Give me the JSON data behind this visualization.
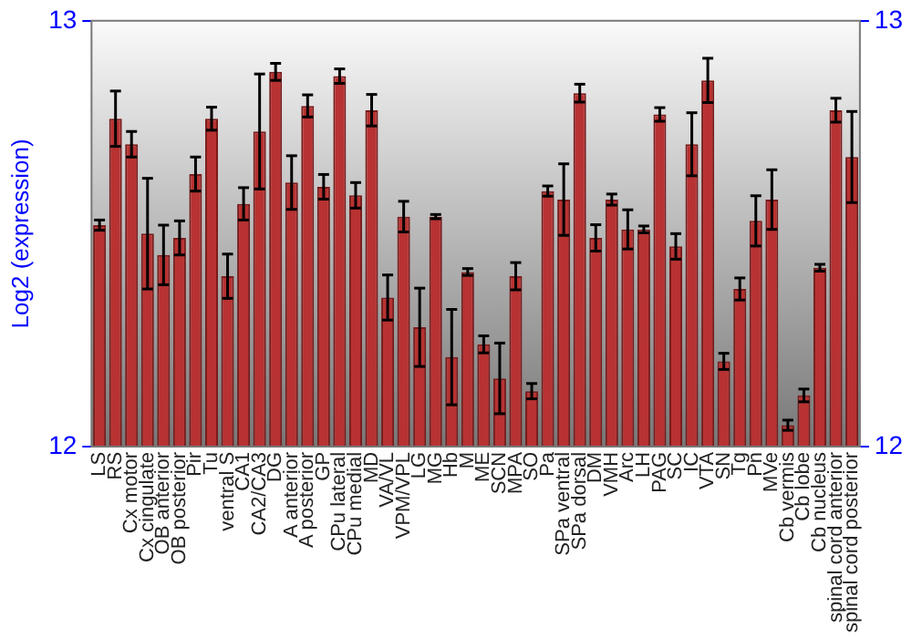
{
  "chart_data": {
    "type": "bar",
    "ylabel": "Log2 (expression)",
    "categories": [
      "LS",
      "RS",
      "Cx motor",
      "Cx cingulate",
      "OB anterior",
      "OB posterior",
      "Pir",
      "Tu",
      "ventral S",
      "CA1",
      "CA2/CA3",
      "DG",
      "A anterior",
      "A posterior",
      "GP",
      "CPu lateral",
      "CPu medial",
      "MD",
      "VA/VL",
      "VPM/VPL",
      "LG",
      "MG",
      "Hb",
      "M",
      "ME",
      "SCN",
      "MPA",
      "SO",
      "Pa",
      "SPa ventral",
      "SPa dorsal",
      "DM",
      "VMH",
      "Arc",
      "LH",
      "PAG",
      "SC",
      "IC",
      "VTA",
      "SN",
      "Tg",
      "Pn",
      "MVe",
      "Cb vermis",
      "Cb lobe",
      "Cb nucleus",
      "spinal cord anterior",
      "spinal cord posterior"
    ],
    "values": [
      12.52,
      12.77,
      12.71,
      12.5,
      12.45,
      12.49,
      12.64,
      12.77,
      12.4,
      12.57,
      12.74,
      12.88,
      12.62,
      12.8,
      12.61,
      12.87,
      12.59,
      12.79,
      12.35,
      12.54,
      12.28,
      12.54,
      12.21,
      12.41,
      12.24,
      12.16,
      12.4,
      12.13,
      12.6,
      12.58,
      12.83,
      12.49,
      12.58,
      12.51,
      12.51,
      12.78,
      12.47,
      12.71,
      12.86,
      12.2,
      12.37,
      12.53,
      12.58,
      12.05,
      12.12,
      12.42,
      12.79,
      12.68
    ],
    "errors": [
      0.012,
      0.065,
      0.03,
      0.13,
      0.07,
      0.04,
      0.04,
      0.027,
      0.052,
      0.038,
      0.135,
      0.02,
      0.063,
      0.026,
      0.029,
      0.017,
      0.03,
      0.037,
      0.053,
      0.036,
      0.092,
      0.005,
      0.112,
      0.008,
      0.02,
      0.083,
      0.032,
      0.018,
      0.012,
      0.084,
      0.021,
      0.031,
      0.013,
      0.046,
      0.008,
      0.016,
      0.03,
      0.074,
      0.052,
      0.019,
      0.026,
      0.059,
      0.07,
      0.012,
      0.015,
      0.008,
      0.028,
      0.107
    ],
    "color": "#b83232",
    "ylim": [
      12,
      13
    ],
    "yticks": [
      12,
      13
    ],
    "y2lim": [
      12,
      13
    ],
    "y2ticks": [
      12,
      13
    ],
    "grid": false,
    "legend": false
  }
}
